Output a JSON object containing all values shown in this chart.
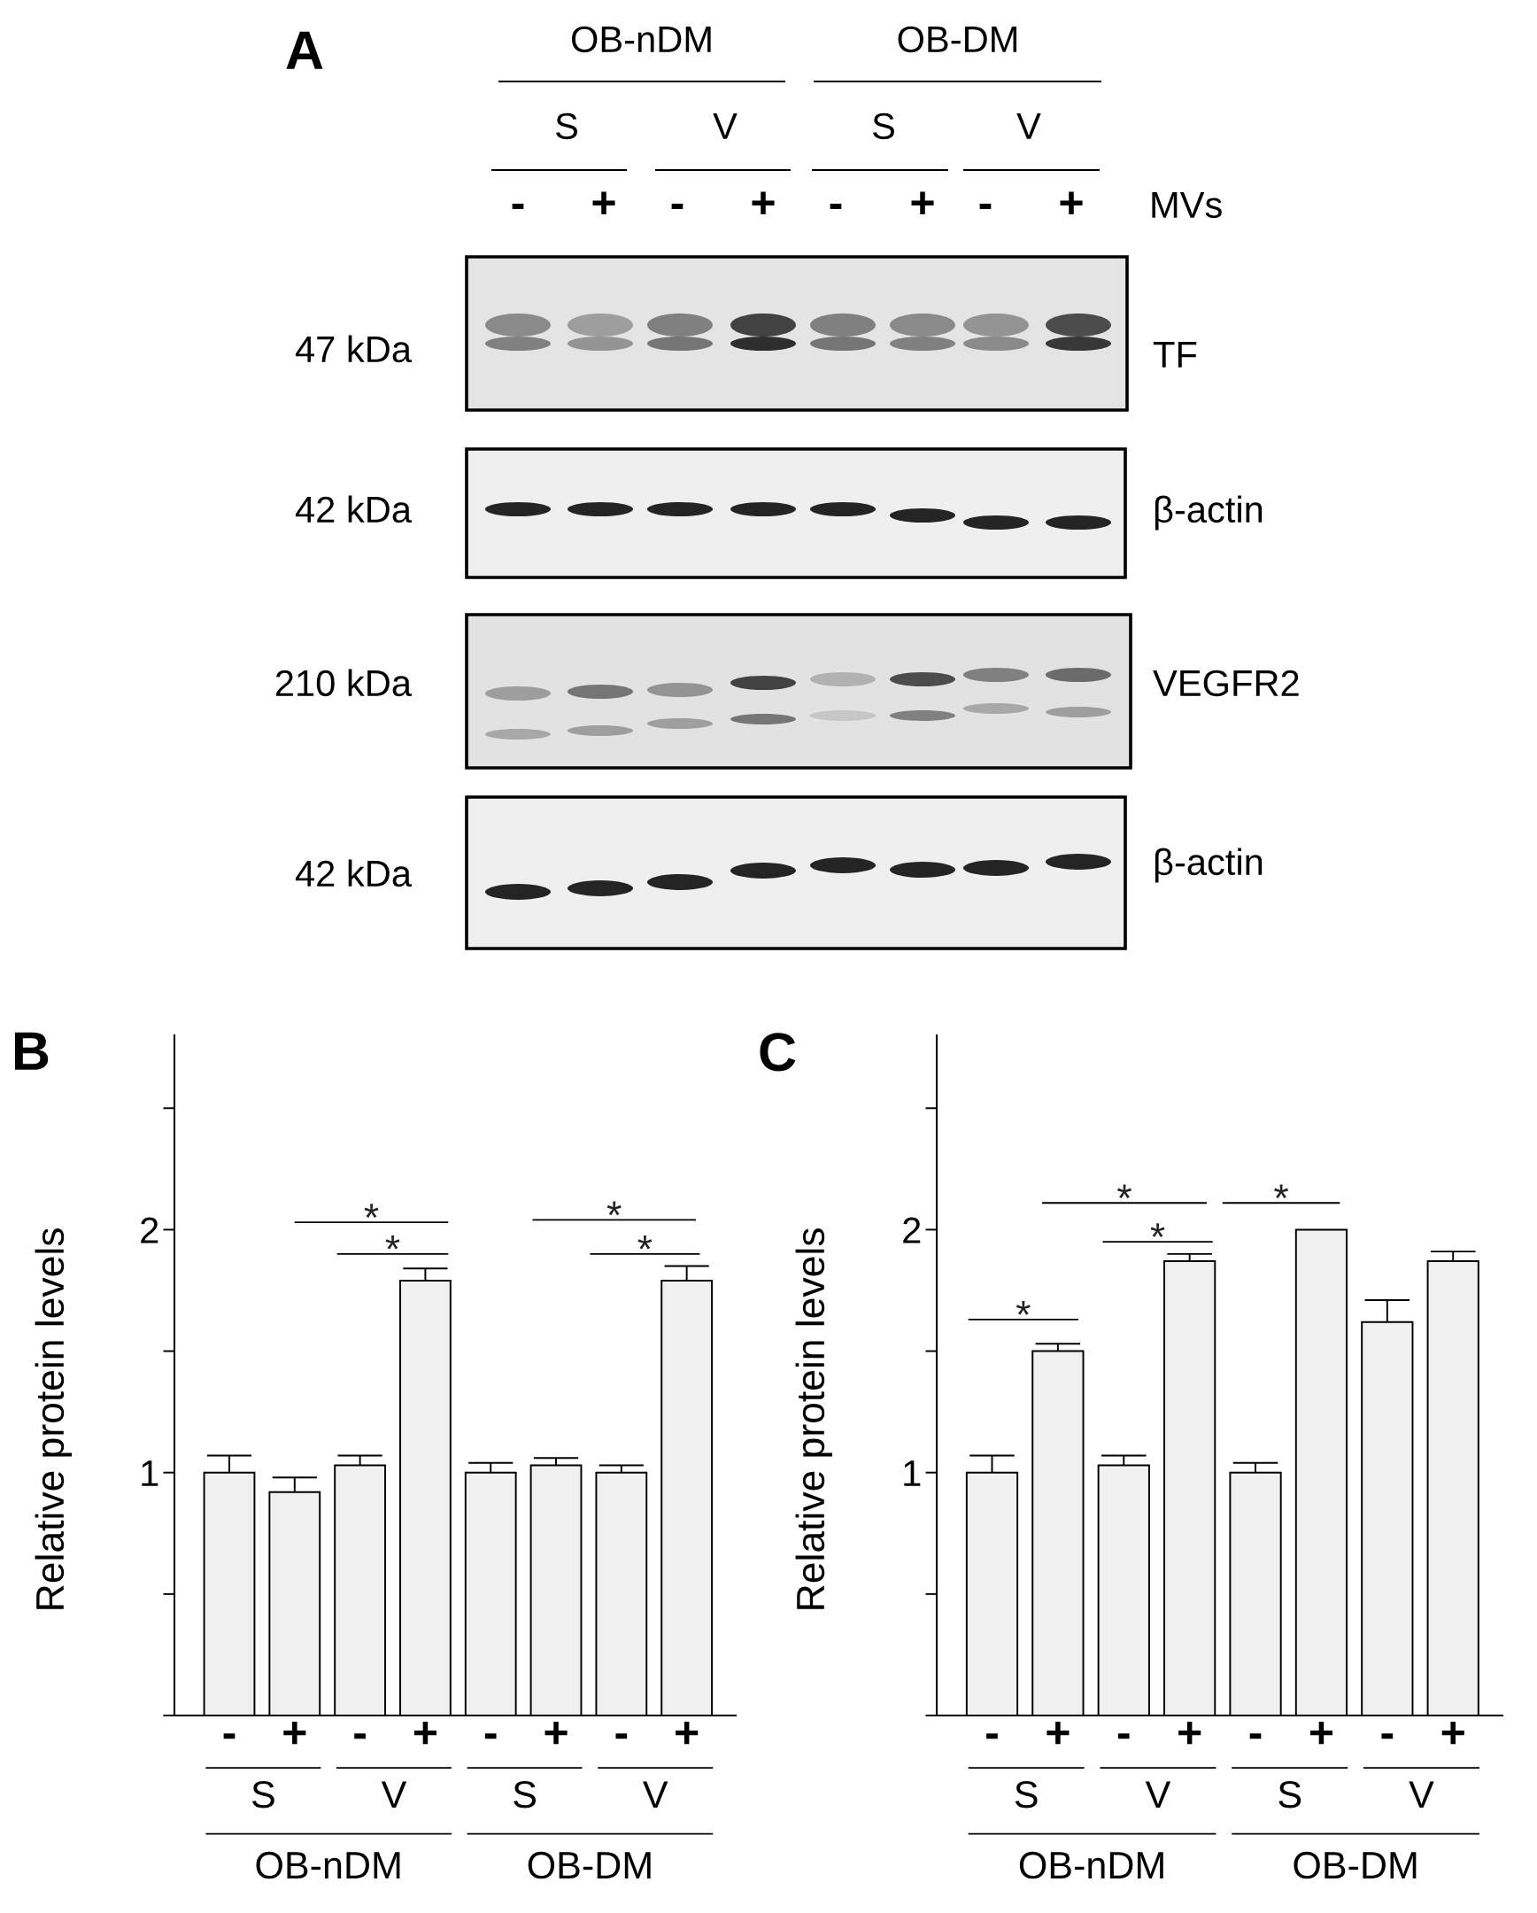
{
  "chart_data": [
    {
      "type": "other",
      "title": "A",
      "annotations": [
        "OB-nDM",
        "OB-DM",
        "S",
        "V",
        "S",
        "V",
        "-",
        "+",
        "-",
        "+",
        "-",
        "+",
        "-",
        "+",
        "MVs",
        "47 kDa",
        "TF",
        "42 kDa",
        "β-actin",
        "210 kDa",
        "VEGFR2",
        "42 kDa",
        "β-actin"
      ]
    },
    {
      "type": "bar",
      "title": "B",
      "ylabel": "Relative protein levels",
      "categories": [
        "-",
        "+",
        "-",
        "+",
        "-",
        "+",
        "-",
        "+"
      ],
      "values": [
        1.0,
        0.92,
        1.03,
        1.79,
        1.0,
        1.03,
        1.0,
        1.79
      ],
      "errors": [
        [
          1.0,
          1.07
        ],
        [
          0.92,
          0.98
        ],
        [
          1.03,
          1.07
        ],
        [
          1.79,
          1.84
        ],
        [
          1.0,
          1.04
        ],
        [
          1.03,
          1.06
        ],
        [
          1.0,
          1.03
        ],
        [
          1.79,
          1.85
        ]
      ],
      "color": "#f0f0f0",
      "ylim": [
        0,
        2.8
      ],
      "yticks": [
        {
          "value": 0,
          "label": null
        },
        {
          "value": 0.5,
          "label": null
        },
        1,
        {
          "value": 1.5,
          "label": null
        },
        2,
        {
          "value": 2.5,
          "label": null
        }
      ],
      "annotations": [
        "S",
        "V",
        "S",
        "V",
        "OB-nDM",
        "OB-DM",
        "*",
        "*",
        "*",
        "*"
      ]
    },
    {
      "type": "bar",
      "title": "C",
      "ylabel": "Relative protein levels",
      "categories": [
        "-",
        "+",
        "-",
        "+",
        "-",
        "+",
        "-",
        "+"
      ],
      "values": [
        1.0,
        1.5,
        1.03,
        1.87,
        1.0,
        2.0,
        1.62,
        1.87
      ],
      "errors": [
        [
          1.0,
          1.07
        ],
        [
          1.5,
          1.53
        ],
        [
          1.03,
          1.07
        ],
        [
          1.87,
          1.9
        ],
        [
          1.0,
          1.04
        ],
        null,
        [
          1.62,
          1.71
        ],
        [
          1.87,
          1.91
        ]
      ],
      "color": "#f0f0f0",
      "ylim": [
        0,
        2.8
      ],
      "yticks": [
        {
          "value": 0,
          "label": null
        },
        {
          "value": 0.5,
          "label": null
        },
        1,
        {
          "value": 1.5,
          "label": null
        },
        2,
        {
          "value": 2.5,
          "label": null
        }
      ],
      "annotations": [
        "S",
        "V",
        "S",
        "V",
        "OB-nDM",
        "OB-DM",
        "*",
        "*",
        "*",
        "*"
      ]
    }
  ]
}
